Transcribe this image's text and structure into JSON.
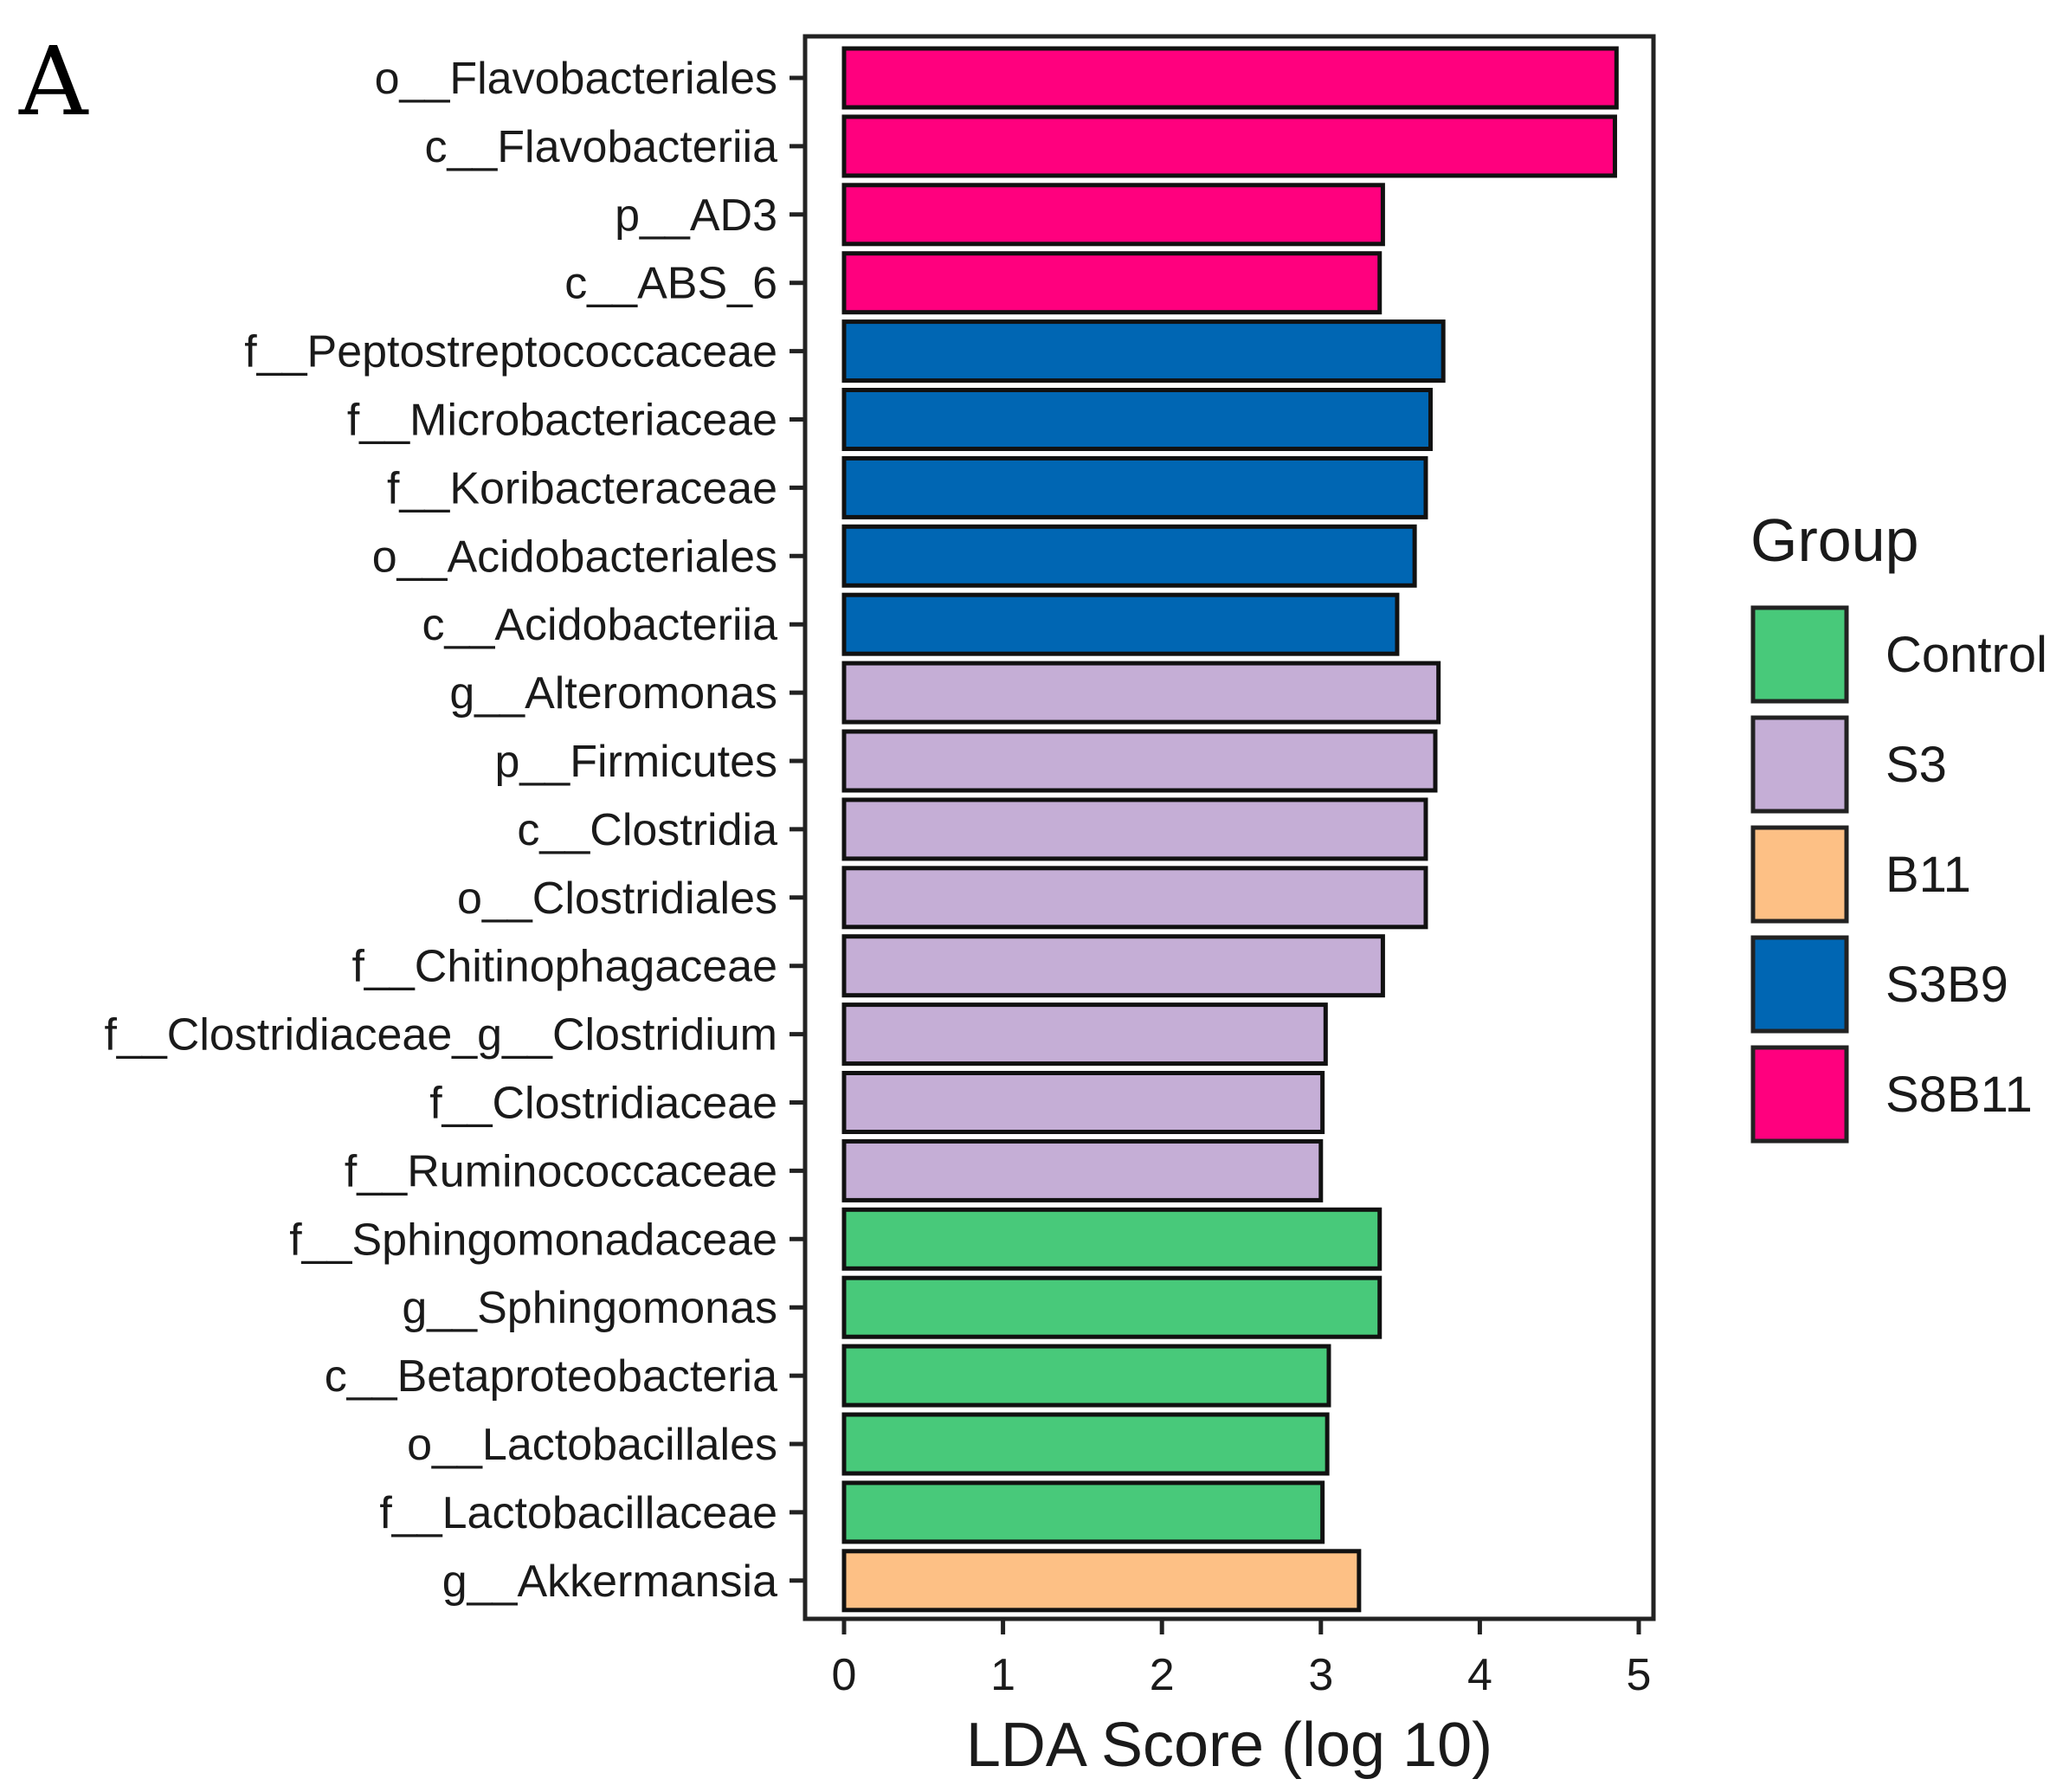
{
  "panel_label": "A",
  "chart_data": {
    "type": "bar",
    "orientation": "horizontal",
    "title": "",
    "xlabel": "LDA Score (log 10)",
    "ylabel": "",
    "xlim": [
      0,
      5
    ],
    "xticks": [
      0,
      1,
      2,
      3,
      4,
      5
    ],
    "grid": false,
    "legend": {
      "title": "Group",
      "position": "right",
      "entries": [
        {
          "label": "Control",
          "color": "#48c97a"
        },
        {
          "label": "S3",
          "color": "#c5aed6"
        },
        {
          "label": "B11",
          "color": "#fdc085"
        },
        {
          "label": "S3B9",
          "color": "#0066b3"
        },
        {
          "label": "S8B11",
          "color": "#ff007e"
        }
      ]
    },
    "bars": [
      {
        "category": "o__Flavobacteriales",
        "value": 4.86,
        "group": "S8B11"
      },
      {
        "category": "c__Flavobacteriia",
        "value": 4.85,
        "group": "S8B11"
      },
      {
        "category": "p__AD3",
        "value": 3.39,
        "group": "S8B11"
      },
      {
        "category": "c__ABS_6",
        "value": 3.37,
        "group": "S8B11"
      },
      {
        "category": "f__Peptostreptococcaceae",
        "value": 3.77,
        "group": "S3B9"
      },
      {
        "category": "f__Microbacteriaceae",
        "value": 3.69,
        "group": "S3B9"
      },
      {
        "category": "f__Koribacteraceae",
        "value": 3.66,
        "group": "S3B9"
      },
      {
        "category": "o__Acidobacteriales",
        "value": 3.59,
        "group": "S3B9"
      },
      {
        "category": "c__Acidobacteriia",
        "value": 3.48,
        "group": "S3B9"
      },
      {
        "category": "g__Alteromonas",
        "value": 3.74,
        "group": "S3"
      },
      {
        "category": "p__Firmicutes",
        "value": 3.72,
        "group": "S3"
      },
      {
        "category": "c__Clostridia",
        "value": 3.66,
        "group": "S3"
      },
      {
        "category": "o__Clostridiales",
        "value": 3.66,
        "group": "S3"
      },
      {
        "category": "f__Chitinophagaceae",
        "value": 3.39,
        "group": "S3"
      },
      {
        "category": "f__Clostridiaceae_g__Clostridium",
        "value": 3.03,
        "group": "S3"
      },
      {
        "category": "f__Clostridiaceae",
        "value": 3.01,
        "group": "S3"
      },
      {
        "category": "f__Ruminococcaceae",
        "value": 3.0,
        "group": "S3"
      },
      {
        "category": "f__Sphingomonadaceae",
        "value": 3.37,
        "group": "Control"
      },
      {
        "category": "g__Sphingomonas",
        "value": 3.37,
        "group": "Control"
      },
      {
        "category": "c__Betaproteobacteria",
        "value": 3.05,
        "group": "Control"
      },
      {
        "category": "o__Lactobacillales",
        "value": 3.04,
        "group": "Control"
      },
      {
        "category": "f__Lactobacillaceae",
        "value": 3.01,
        "group": "Control"
      },
      {
        "category": "g__Akkermansia",
        "value": 3.24,
        "group": "B11"
      }
    ]
  }
}
